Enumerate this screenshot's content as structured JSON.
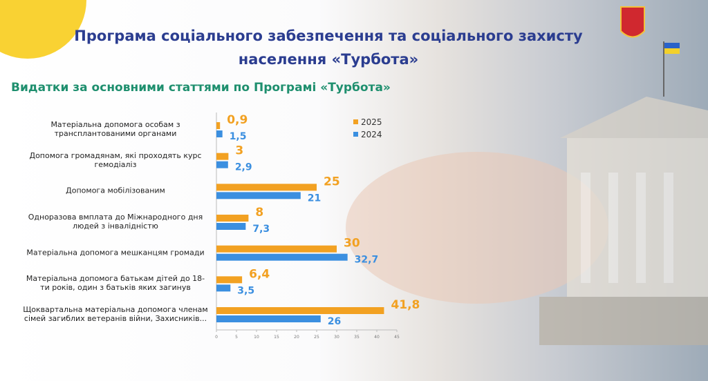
{
  "header": {
    "title_lines": [
      "Програма соціального забезпечення та соціального захисту",
      "населення «Турбота»"
    ]
  },
  "chart_data": {
    "type": "bar",
    "orientation": "horizontal",
    "title": "Видатки за основними статтями по Програмі «Турбота»",
    "categories": [
      "Матеріальна допомога особам з трансплантованими органами",
      "Допомога громадянам, які проходять курс гемодіаліз",
      "Допомога мобілізованим",
      "Одноразова вмплата до Міжнародного дня людей з інвалідністю",
      "Матеріальна допомога мешканцям громади",
      "Матеріальна допомога батькам  дітей до 18-ти років, один з батьків яких загинув",
      "Щоквартальна матеріальна допомога членам сімей загиблих ветеранів війни, Захисників..."
    ],
    "series": [
      {
        "name": "2025",
        "color": "#f2a122",
        "values": [
          0.9,
          3,
          25,
          8,
          30,
          6.4,
          41.8
        ],
        "value_labels": [
          "0,9",
          "3",
          "25",
          "8",
          "30",
          "6,4",
          "41,8"
        ]
      },
      {
        "name": "2024",
        "color": "#3b8fe0",
        "values": [
          1.5,
          2.9,
          21,
          7.3,
          32.7,
          3.5,
          26
        ],
        "value_labels": [
          "1,5",
          "2,9",
          "21",
          "7,3",
          "32,7",
          "3,5",
          "26"
        ]
      }
    ],
    "xlim": [
      0,
      45
    ],
    "xticks": [
      0,
      5,
      10,
      15,
      20,
      25,
      30,
      35,
      40,
      45
    ]
  }
}
